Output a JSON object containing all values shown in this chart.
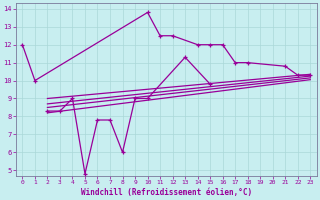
{
  "xlabel": "Windchill (Refroidissement éolien,°C)",
  "bg_color": "#c8eef0",
  "line_color": "#990099",
  "xlim": [
    -0.5,
    23.5
  ],
  "ylim": [
    4.7,
    14.3
  ],
  "yticks": [
    5,
    6,
    7,
    8,
    9,
    10,
    11,
    12,
    13,
    14
  ],
  "xticks": [
    0,
    1,
    2,
    3,
    4,
    5,
    6,
    7,
    8,
    9,
    10,
    11,
    12,
    13,
    14,
    15,
    16,
    17,
    18,
    19,
    20,
    21,
    22,
    23
  ],
  "series1_x": [
    0,
    1,
    10,
    11,
    12,
    14,
    15,
    16,
    17,
    18,
    21,
    22,
    23
  ],
  "series1_y": [
    12.0,
    10.0,
    13.8,
    12.5,
    12.5,
    12.0,
    12.0,
    12.0,
    11.0,
    11.0,
    10.8,
    10.3,
    10.3
  ],
  "series2_x": [
    2,
    3,
    4,
    5,
    6,
    7,
    8,
    9,
    10,
    13,
    15
  ],
  "series2_y": [
    8.3,
    8.3,
    9.0,
    4.8,
    7.8,
    7.8,
    6.0,
    9.0,
    9.0,
    11.3,
    9.8
  ],
  "trend1_x": [
    2,
    23
  ],
  "trend1_y": [
    8.2,
    10.05
  ],
  "trend2_x": [
    2,
    23
  ],
  "trend2_y": [
    8.5,
    10.15
  ],
  "trend3_x": [
    2,
    23
  ],
  "trend3_y": [
    8.7,
    10.25
  ],
  "trend4_x": [
    2,
    23
  ],
  "trend4_y": [
    9.0,
    10.35
  ],
  "grid_color": "#aad8d8",
  "spine_color": "#7a7a9a"
}
